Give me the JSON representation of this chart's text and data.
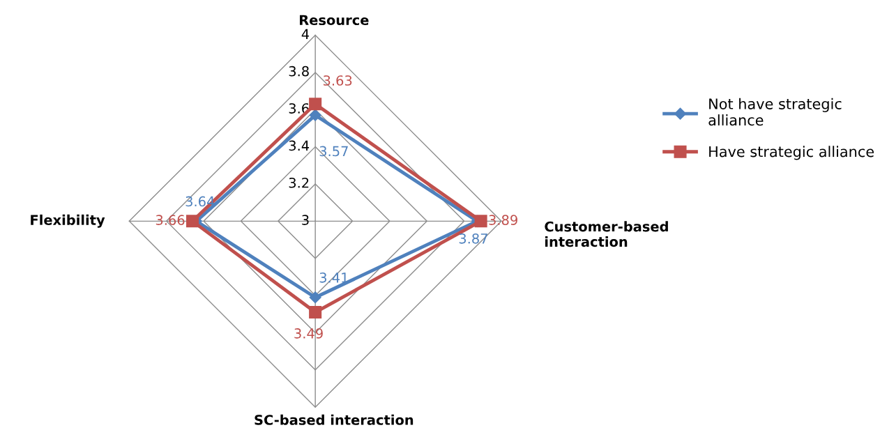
{
  "chart_data": {
    "type": "radar",
    "categories": [
      "Resource",
      "Customer-based interaction",
      "SC-based interaction",
      "Flexibility"
    ],
    "ylim": [
      3,
      4
    ],
    "yticks": [
      3,
      3.2,
      3.4,
      3.6,
      3.8,
      4
    ],
    "series": [
      {
        "name": "Not have strategic alliance",
        "color": "#4f81bd",
        "marker": "diamond",
        "values": [
          3.57,
          3.87,
          3.41,
          3.64
        ]
      },
      {
        "name": "Have strategic alliance",
        "color": "#c0504d",
        "marker": "square",
        "values": [
          3.63,
          3.89,
          3.49,
          3.66
        ]
      }
    ],
    "data_labels": true,
    "legend": "right",
    "grid": true
  }
}
